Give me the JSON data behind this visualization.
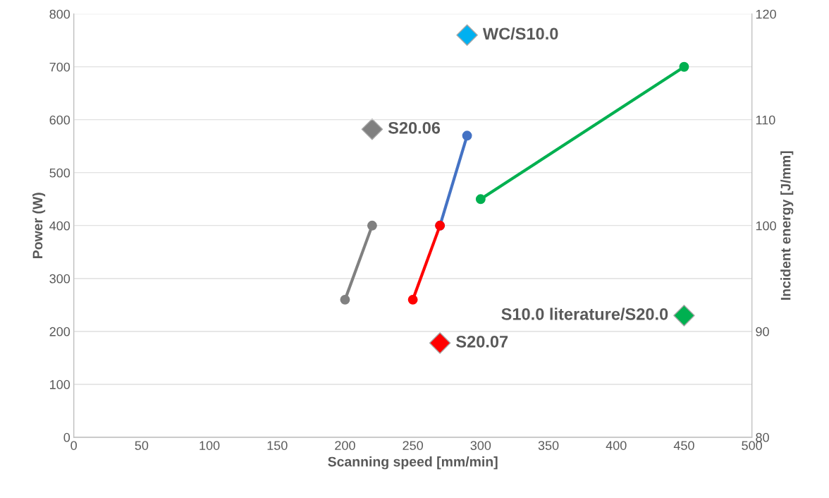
{
  "chart_data": {
    "type": "line",
    "xlabel": "Scanning speed [mm/min]",
    "ylabel": "Power (W)",
    "y2label": "Incident energy [J/mm]",
    "xlim": [
      0,
      500
    ],
    "xticks": [
      0,
      50,
      100,
      150,
      200,
      250,
      300,
      350,
      400,
      450,
      500
    ],
    "ylim": [
      0,
      800
    ],
    "yticks": [
      0,
      100,
      200,
      300,
      400,
      500,
      600,
      700,
      800
    ],
    "y2lim": [
      80,
      120
    ],
    "y2ticks": [
      80,
      90,
      100,
      110,
      120
    ],
    "grid": "y",
    "legend": false,
    "marker": "circle",
    "line_style": "solid",
    "series": [
      {
        "color": "#808080",
        "x": [
          200,
          220
        ],
        "values": [
          260,
          400
        ]
      },
      {
        "color": "#4472c4",
        "x": [
          270,
          290
        ],
        "values": [
          400,
          570
        ]
      },
      {
        "color": "#ff0000",
        "x": [
          250,
          270
        ],
        "values": [
          260,
          400
        ]
      },
      {
        "color": "#00b050",
        "x": [
          300,
          450
        ],
        "values": [
          450,
          700
        ]
      },
      {
        "type": "scatter",
        "axis": "y2",
        "marker": "diamond",
        "name": "WC/S10.0",
        "color": "#00b0f0",
        "x": [
          290
        ],
        "values": [
          118
        ]
      },
      {
        "type": "scatter",
        "axis": "y2",
        "marker": "diamond",
        "name": "S20.06",
        "color": "#808080",
        "x": [
          220
        ],
        "values": [
          109.1
        ]
      },
      {
        "type": "scatter",
        "axis": "y2",
        "marker": "diamond",
        "name": "S20.07",
        "color": "#ff0000",
        "x": [
          270
        ],
        "values": [
          88.9
        ]
      },
      {
        "type": "scatter",
        "axis": "y2",
        "marker": "diamond",
        "name": "S10.0 literature/S20.0",
        "color": "#00b050",
        "x": [
          450
        ],
        "values": [
          91.5
        ]
      }
    ]
  }
}
